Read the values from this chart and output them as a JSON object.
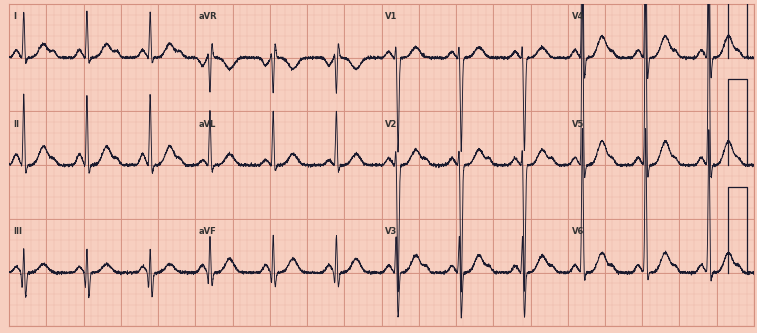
{
  "bg_color": "#f7cfc0",
  "grid_minor_color": "#e8b0a0",
  "grid_major_color": "#d49080",
  "ecg_color": "#1a1a2e",
  "fig_width": 7.57,
  "fig_height": 3.33,
  "dpi": 100,
  "rows": 3,
  "leads": [
    [
      "I",
      "aVR",
      "V1",
      "V4"
    ],
    [
      "II",
      "aVL",
      "V2",
      "V5"
    ],
    [
      "III",
      "aVF",
      "V3",
      "V6"
    ]
  ],
  "label_fontsize": 6.0,
  "hr": 68,
  "noise": 0.008,
  "configs": {
    "I": {
      "p_amp": 0.09,
      "r_amp": 0.55,
      "s_amp": -0.08,
      "t_amp": 0.16,
      "q_amp": -0.04,
      "qt_long": true,
      "u_wave": true,
      "inverted_t": false,
      "deep_s": false,
      "tall_r": false
    },
    "II": {
      "p_amp": 0.13,
      "r_amp": 0.85,
      "s_amp": -0.12,
      "t_amp": 0.22,
      "q_amp": -0.06,
      "qt_long": true,
      "u_wave": true,
      "inverted_t": false,
      "deep_s": false,
      "tall_r": false
    },
    "III": {
      "p_amp": 0.07,
      "r_amp": 0.35,
      "s_amp": -0.3,
      "t_amp": 0.1,
      "q_amp": -0.22,
      "qt_long": true,
      "u_wave": false,
      "inverted_t": false,
      "deep_s": false,
      "tall_r": false
    },
    "aVR": {
      "p_amp": -0.09,
      "r_amp": -0.45,
      "s_amp": 0.18,
      "t_amp": -0.13,
      "q_amp": 0.09,
      "qt_long": true,
      "u_wave": false,
      "inverted_t": false,
      "deep_s": false,
      "tall_r": false
    },
    "aVL": {
      "p_amp": 0.06,
      "r_amp": 0.65,
      "s_amp": -0.09,
      "t_amp": 0.13,
      "q_amp": -0.04,
      "qt_long": true,
      "u_wave": false,
      "inverted_t": false,
      "deep_s": false,
      "tall_r": false
    },
    "aVF": {
      "p_amp": 0.09,
      "r_amp": 0.48,
      "s_amp": -0.18,
      "t_amp": 0.16,
      "q_amp": -0.18,
      "qt_long": true,
      "u_wave": false,
      "inverted_t": false,
      "deep_s": false,
      "tall_r": false
    },
    "V1": {
      "p_amp": 0.07,
      "r_amp": 0.22,
      "s_amp": -0.55,
      "t_amp": 0.12,
      "q_amp": -0.03,
      "qt_long": true,
      "u_wave": false,
      "inverted_t": false,
      "deep_s": true,
      "tall_r": false
    },
    "V2": {
      "p_amp": 0.08,
      "r_amp": 0.3,
      "s_amp": -0.75,
      "t_amp": 0.18,
      "q_amp": -0.03,
      "qt_long": true,
      "u_wave": true,
      "inverted_t": false,
      "deep_s": true,
      "tall_r": false
    },
    "V3": {
      "p_amp": 0.08,
      "r_amp": 0.5,
      "s_amp": -0.55,
      "t_amp": 0.2,
      "q_amp": -0.04,
      "qt_long": true,
      "u_wave": true,
      "inverted_t": false,
      "deep_s": false,
      "tall_r": false
    },
    "V4": {
      "p_amp": 0.09,
      "r_amp": 1.1,
      "s_amp": -0.3,
      "t_amp": 0.25,
      "q_amp": -0.05,
      "qt_long": true,
      "u_wave": true,
      "inverted_t": false,
      "deep_s": false,
      "tall_r": true
    },
    "V5": {
      "p_amp": 0.09,
      "r_amp": 1.3,
      "s_amp": -0.2,
      "t_amp": 0.28,
      "q_amp": -0.05,
      "qt_long": true,
      "u_wave": true,
      "inverted_t": false,
      "deep_s": false,
      "tall_r": true
    },
    "V6": {
      "p_amp": 0.09,
      "r_amp": 1.0,
      "s_amp": -0.12,
      "t_amp": 0.23,
      "q_amp": -0.04,
      "qt_long": true,
      "u_wave": true,
      "inverted_t": false,
      "deep_s": false,
      "tall_r": true
    }
  }
}
